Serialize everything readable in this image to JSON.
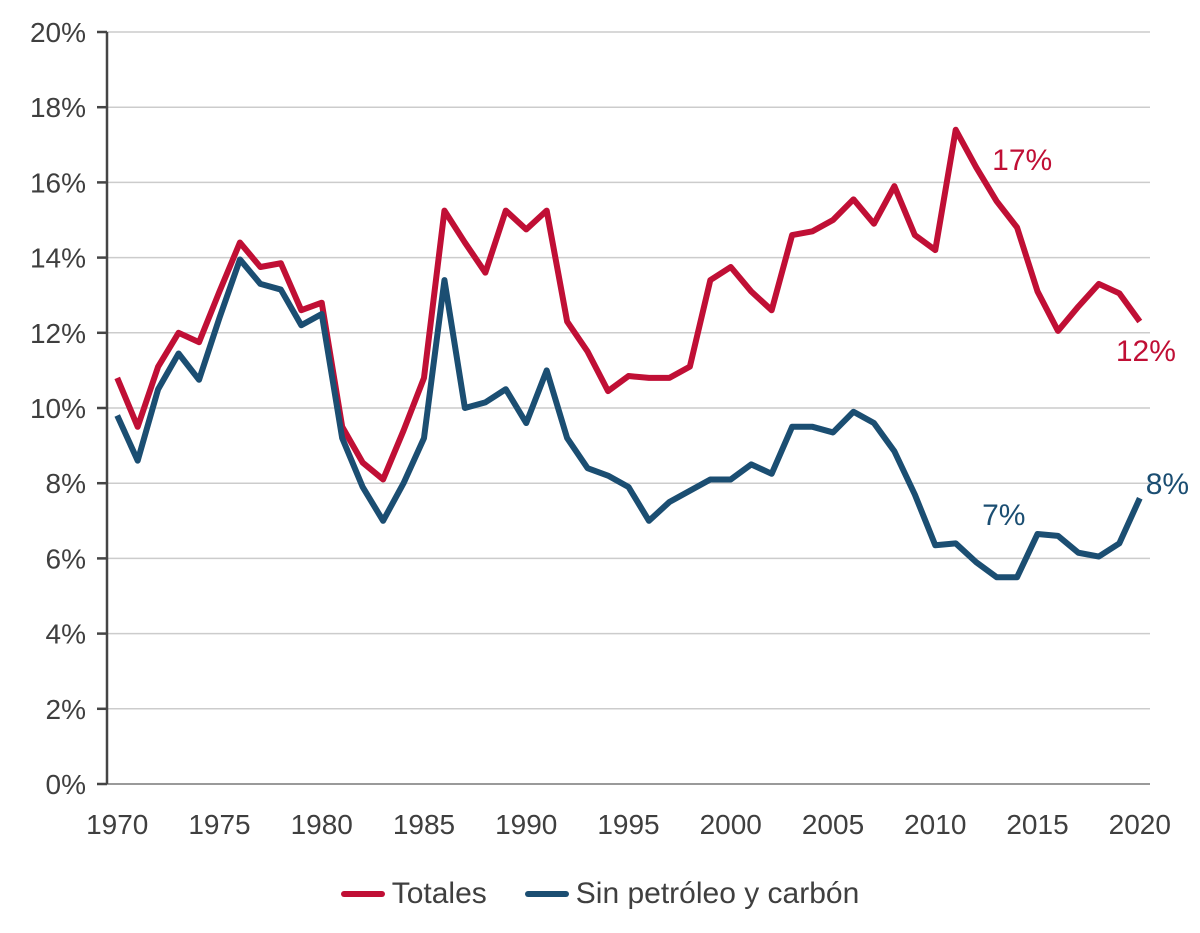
{
  "chart_data": {
    "type": "line",
    "title": "",
    "xlabel": "",
    "ylabel": "",
    "xlim": [
      1969.5,
      2020.5
    ],
    "ylim": [
      0,
      20
    ],
    "grid": "horizontal",
    "legend_position": "bottom",
    "years": [
      1970,
      1971,
      1972,
      1973,
      1974,
      1975,
      1976,
      1977,
      1978,
      1979,
      1980,
      1981,
      1982,
      1983,
      1984,
      1985,
      1986,
      1987,
      1988,
      1989,
      1990,
      1991,
      1992,
      1993,
      1994,
      1995,
      1996,
      1997,
      1998,
      1999,
      2000,
      2001,
      2002,
      2003,
      2004,
      2005,
      2006,
      2007,
      2008,
      2009,
      2010,
      2011,
      2012,
      2013,
      2014,
      2015,
      2016,
      2017,
      2018,
      2019,
      2020
    ],
    "series": [
      {
        "name": "Totales",
        "color": "#c00f35",
        "values": [
          10.8,
          9.5,
          11.1,
          12.0,
          11.75,
          13.1,
          14.4,
          13.75,
          13.85,
          12.6,
          12.8,
          9.5,
          8.55,
          8.1,
          9.4,
          10.8,
          15.25,
          14.4,
          13.6,
          15.25,
          14.75,
          15.25,
          12.3,
          11.5,
          10.45,
          10.85,
          10.8,
          10.8,
          11.1,
          13.4,
          13.75,
          13.1,
          12.6,
          14.6,
          14.7,
          15.0,
          15.55,
          14.9,
          15.9,
          14.6,
          14.2,
          17.4,
          16.4,
          15.5,
          14.8,
          13.1,
          12.05,
          12.7,
          13.3,
          13.05,
          12.3
        ]
      },
      {
        "name": "Sin petróleo y carbón",
        "color": "#1b4e72",
        "values": [
          9.8,
          8.6,
          10.5,
          11.45,
          10.75,
          12.4,
          13.95,
          13.3,
          13.15,
          12.2,
          12.5,
          9.2,
          7.9,
          7.0,
          8.0,
          9.2,
          13.4,
          10.0,
          10.15,
          10.5,
          9.6,
          11.0,
          9.2,
          8.4,
          8.2,
          7.9,
          7.0,
          7.5,
          7.8,
          8.1,
          8.1,
          8.5,
          8.25,
          9.5,
          9.5,
          9.35,
          9.9,
          9.6,
          8.85,
          7.7,
          6.35,
          6.4,
          5.9,
          5.5,
          5.5,
          6.65,
          6.6,
          6.15,
          6.05,
          6.4,
          7.6
        ]
      }
    ],
    "yticks": [
      0,
      2,
      4,
      6,
      8,
      10,
      12,
      14,
      16,
      18,
      20
    ],
    "ytick_labels": [
      "0%",
      "2%",
      "4%",
      "6%",
      "8%",
      "10%",
      "12%",
      "14%",
      "16%",
      "18%",
      "20%"
    ],
    "xticks": [
      1970,
      1975,
      1980,
      1985,
      1990,
      1995,
      2000,
      2005,
      2010,
      2015,
      2020
    ],
    "xtick_labels": [
      "1970",
      "1975",
      "1980",
      "1985",
      "1990",
      "1995",
      "2000",
      "2005",
      "2010",
      "2015",
      "2020"
    ],
    "annotations": [
      {
        "text": "17%",
        "x": 2014.25,
        "y": 16.6,
        "color": "#c00f35"
      },
      {
        "text": "12%",
        "x": 2020.3,
        "y": 11.52,
        "color": "#c00f35"
      },
      {
        "text": "7%",
        "x": 2013.35,
        "y": 7.15,
        "color": "#1b4e72"
      },
      {
        "text": "8%",
        "x": 2021.35,
        "y": 7.98,
        "color": "#1b4e72"
      }
    ]
  },
  "colors": {
    "background": "#ffffff",
    "gridline": "#cccccc",
    "baseline": "#9a9a9a",
    "axis": "#454545",
    "tick_text": "#3f3f3f"
  }
}
